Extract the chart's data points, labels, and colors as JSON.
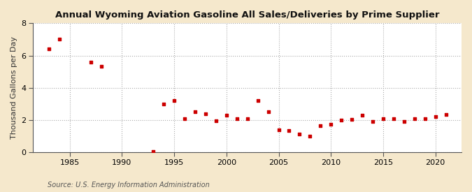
{
  "title": "Annual Wyoming Aviation Gasoline All Sales/Deliveries by Prime Supplier",
  "ylabel": "Thousand Gallons per Day",
  "source": "Source: U.S. Energy Information Administration",
  "outer_bg": "#f5e8cc",
  "inner_bg": "#ffffff",
  "marker_color": "#cc0000",
  "xlim": [
    1981.5,
    2022.5
  ],
  "ylim": [
    0,
    8
  ],
  "yticks": [
    0,
    2,
    4,
    6,
    8
  ],
  "xticks": [
    1985,
    1990,
    1995,
    2000,
    2005,
    2010,
    2015,
    2020
  ],
  "years": [
    1983,
    1984,
    1987,
    1988,
    1993,
    1994,
    1995,
    1996,
    1997,
    1998,
    1999,
    2000,
    2001,
    2002,
    2003,
    2004,
    2005,
    2006,
    2007,
    2008,
    2009,
    2010,
    2011,
    2012,
    2013,
    2014,
    2015,
    2016,
    2017,
    2018,
    2019,
    2020,
    2021
  ],
  "values": [
    6.4,
    7.0,
    5.6,
    5.35,
    0.05,
    3.0,
    3.2,
    2.1,
    2.5,
    2.4,
    1.95,
    2.3,
    2.1,
    2.1,
    3.2,
    2.5,
    1.4,
    1.35,
    1.15,
    1.0,
    1.65,
    1.75,
    2.0,
    2.05,
    2.3,
    1.9,
    2.1,
    2.1,
    1.9,
    2.1,
    2.1,
    2.2,
    2.35
  ]
}
